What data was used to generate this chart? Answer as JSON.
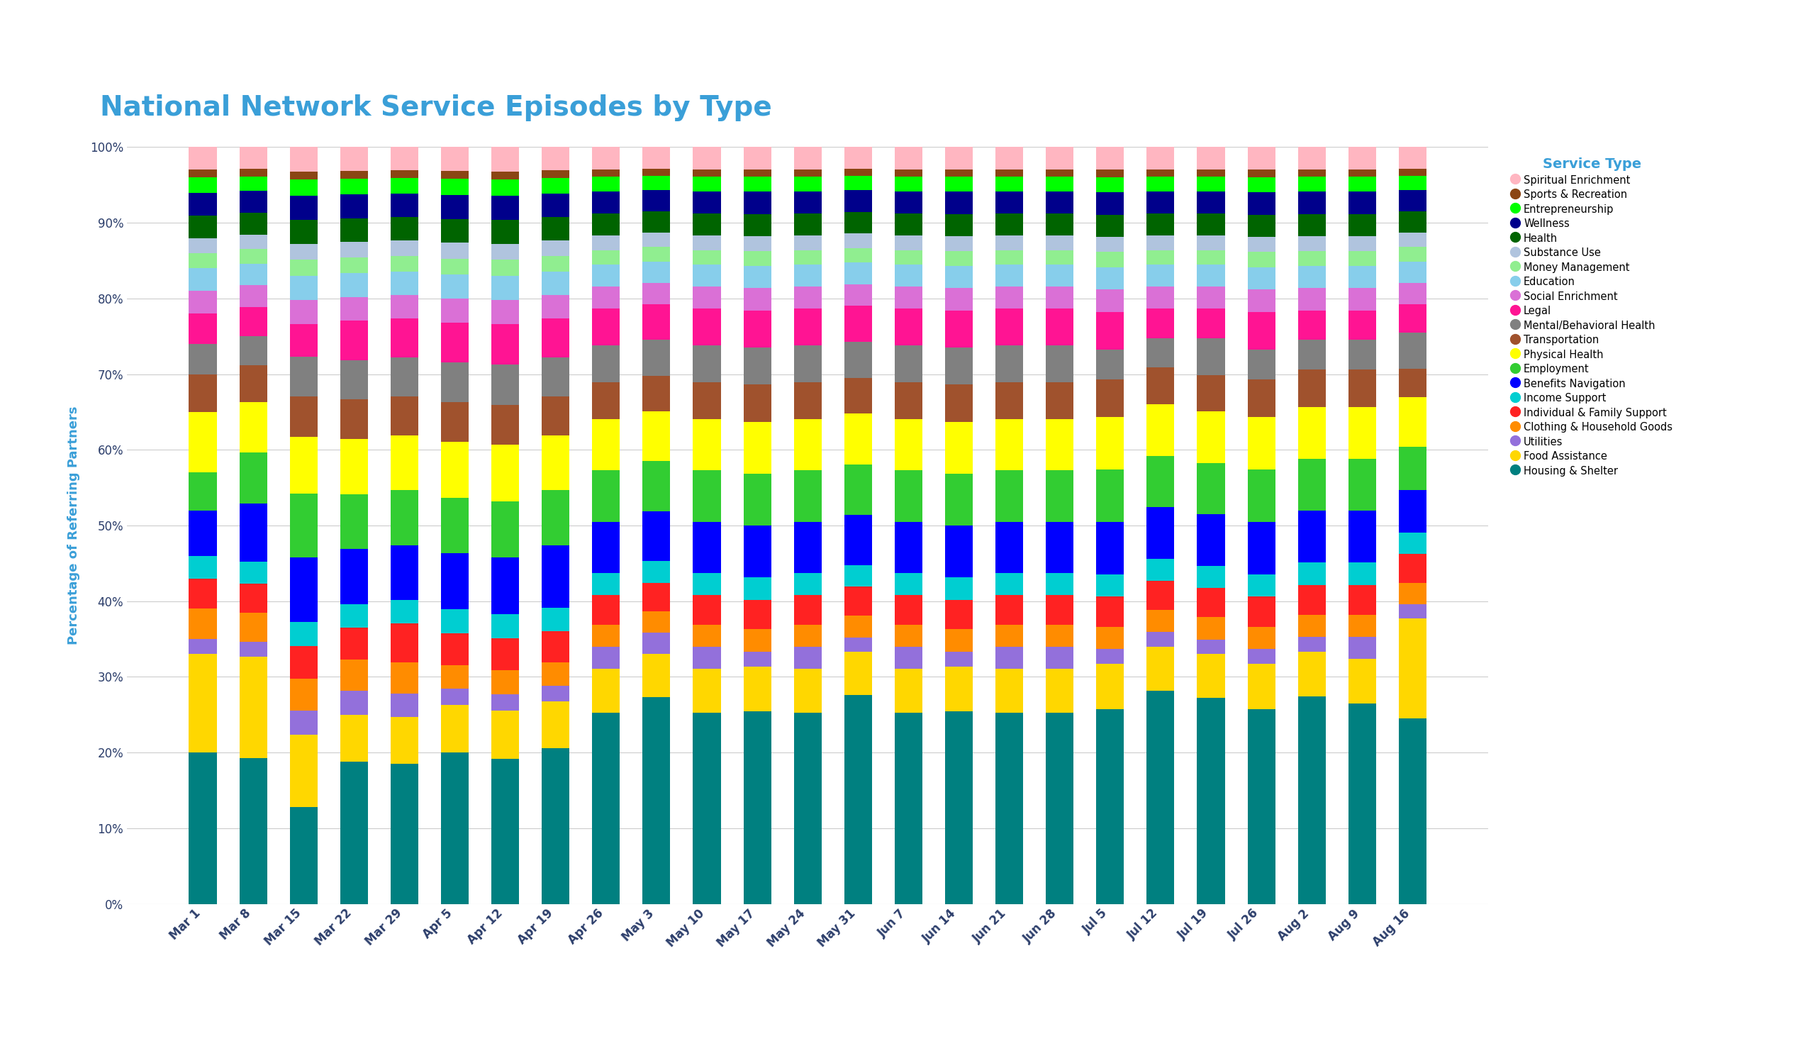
{
  "title": "National Network Service Episodes by Type",
  "title_color": "#3a9fd8",
  "ylabel": "Percentage of Referring Partners",
  "ylabel_color": "#3a9fd8",
  "background_color": "#ffffff",
  "categories": [
    "Mar 1",
    "Mar 8",
    "Mar 15",
    "Mar 22",
    "Mar 29",
    "Apr 5",
    "Apr 12",
    "Apr 19",
    "Apr 26",
    "May 3",
    "May 10",
    "May 17",
    "May 24",
    "May 31",
    "Jun 7",
    "Jun 14",
    "Jun 21",
    "Jun 28",
    "Jul 5",
    "Jul 12",
    "Jul 19",
    "Jul 26",
    "Aug 2",
    "Aug 9",
    "Aug 16"
  ],
  "service_types": [
    "Housing & Shelter",
    "Food Assistance",
    "Utilities",
    "Clothing & Household Goods",
    "Individual & Family Support",
    "Income Support",
    "Benefits Navigation",
    "Employment",
    "Physical Health",
    "Transportation",
    "Mental/Behavioral Health",
    "Legal",
    "Social Enrichment",
    "Education",
    "Money Management",
    "Substance Use",
    "Health",
    "Wellness",
    "Entrepreneurship",
    "Sports & Recreation",
    "Spiritual Enrichment"
  ],
  "colors": [
    "#008080",
    "#FFD700",
    "#9370DB",
    "#FF8C00",
    "#FF2222",
    "#00CED1",
    "#0000FF",
    "#32CD32",
    "#FFFF00",
    "#A0522D",
    "#808080",
    "#FF1493",
    "#DA70D6",
    "#87CEEB",
    "#90EE90",
    "#B0C4DE",
    "#006400",
    "#00008B",
    "#00FF00",
    "#8B4513",
    "#FFB6C1"
  ],
  "data": {
    "Housing & Shelter": [
      20,
      20,
      12,
      18,
      18,
      19,
      18,
      20,
      26,
      29,
      26,
      26,
      26,
      29,
      26,
      26,
      26,
      26,
      26,
      29,
      28,
      26,
      28,
      27,
      26
    ],
    "Food Assistance": [
      13,
      14,
      9,
      6,
      6,
      6,
      6,
      6,
      6,
      6,
      6,
      6,
      6,
      6,
      6,
      6,
      6,
      6,
      6,
      6,
      6,
      6,
      6,
      6,
      14
    ],
    "Utilities": [
      2,
      2,
      3,
      3,
      3,
      2,
      2,
      2,
      3,
      3,
      3,
      2,
      3,
      2,
      3,
      2,
      3,
      3,
      2,
      2,
      2,
      2,
      2,
      3,
      2
    ],
    "Clothing & Household Goods": [
      4,
      4,
      4,
      4,
      4,
      3,
      3,
      3,
      3,
      3,
      3,
      3,
      3,
      3,
      3,
      3,
      3,
      3,
      3,
      3,
      3,
      3,
      3,
      3,
      3
    ],
    "Individual & Family Support": [
      4,
      4,
      4,
      4,
      5,
      4,
      4,
      4,
      4,
      4,
      4,
      4,
      4,
      4,
      4,
      4,
      4,
      4,
      4,
      4,
      4,
      4,
      4,
      4,
      4
    ],
    "Income Support": [
      3,
      3,
      3,
      3,
      3,
      3,
      3,
      3,
      3,
      3,
      3,
      3,
      3,
      3,
      3,
      3,
      3,
      3,
      3,
      3,
      3,
      3,
      3,
      3,
      3
    ],
    "Benefits Navigation": [
      6,
      8,
      8,
      7,
      7,
      7,
      7,
      8,
      7,
      7,
      7,
      7,
      7,
      7,
      7,
      7,
      7,
      7,
      7,
      7,
      7,
      7,
      7,
      7,
      6
    ],
    "Employment": [
      5,
      7,
      8,
      7,
      7,
      7,
      7,
      7,
      7,
      7,
      7,
      7,
      7,
      7,
      7,
      7,
      7,
      7,
      7,
      7,
      7,
      7,
      7,
      7,
      6
    ],
    "Physical Health": [
      8,
      7,
      7,
      7,
      7,
      7,
      7,
      7,
      7,
      7,
      7,
      7,
      7,
      7,
      7,
      7,
      7,
      7,
      7,
      7,
      7,
      7,
      7,
      7,
      7
    ],
    "Transportation": [
      5,
      5,
      5,
      5,
      5,
      5,
      5,
      5,
      5,
      5,
      5,
      5,
      5,
      5,
      5,
      5,
      5,
      5,
      5,
      5,
      5,
      5,
      5,
      5,
      4
    ],
    "Mental/Behavioral Health": [
      4,
      4,
      5,
      5,
      5,
      5,
      5,
      5,
      5,
      5,
      5,
      5,
      5,
      5,
      5,
      5,
      5,
      5,
      4,
      4,
      5,
      4,
      4,
      4,
      5
    ],
    "Legal": [
      4,
      4,
      4,
      5,
      5,
      5,
      5,
      5,
      5,
      5,
      5,
      5,
      5,
      5,
      5,
      5,
      5,
      5,
      5,
      4,
      4,
      5,
      4,
      4,
      4
    ],
    "Social Enrichment": [
      3,
      3,
      3,
      3,
      3,
      3,
      3,
      3,
      3,
      3,
      3,
      3,
      3,
      3,
      3,
      3,
      3,
      3,
      3,
      3,
      3,
      3,
      3,
      3,
      3
    ],
    "Education": [
      3,
      3,
      3,
      3,
      3,
      3,
      3,
      3,
      3,
      3,
      3,
      3,
      3,
      3,
      3,
      3,
      3,
      3,
      3,
      3,
      3,
      3,
      3,
      3,
      3
    ],
    "Money Management": [
      2,
      2,
      2,
      2,
      2,
      2,
      2,
      2,
      2,
      2,
      2,
      2,
      2,
      2,
      2,
      2,
      2,
      2,
      2,
      2,
      2,
      2,
      2,
      2,
      2
    ],
    "Substance Use": [
      2,
      2,
      2,
      2,
      2,
      2,
      2,
      2,
      2,
      2,
      2,
      2,
      2,
      2,
      2,
      2,
      2,
      2,
      2,
      2,
      2,
      2,
      2,
      2,
      2
    ],
    "Health": [
      3,
      3,
      3,
      3,
      3,
      3,
      3,
      3,
      3,
      3,
      3,
      3,
      3,
      3,
      3,
      3,
      3,
      3,
      3,
      3,
      3,
      3,
      3,
      3,
      3
    ],
    "Wellness": [
      3,
      3,
      3,
      3,
      3,
      3,
      3,
      3,
      3,
      3,
      3,
      3,
      3,
      3,
      3,
      3,
      3,
      3,
      3,
      3,
      3,
      3,
      3,
      3,
      3
    ],
    "Entrepreneurship": [
      2,
      2,
      2,
      2,
      2,
      2,
      2,
      2,
      2,
      2,
      2,
      2,
      2,
      2,
      2,
      2,
      2,
      2,
      2,
      2,
      2,
      2,
      2,
      2,
      2
    ],
    "Sports & Recreation": [
      1,
      1,
      1,
      1,
      1,
      1,
      1,
      1,
      1,
      1,
      1,
      1,
      1,
      1,
      1,
      1,
      1,
      1,
      1,
      1,
      1,
      1,
      1,
      1,
      1
    ],
    "Spiritual Enrichment": [
      3,
      3,
      3,
      3,
      3,
      3,
      3,
      3,
      3,
      3,
      3,
      3,
      3,
      3,
      3,
      3,
      3,
      3,
      3,
      3,
      3,
      3,
      3,
      3,
      3
    ]
  },
  "legend_title": "Service Type",
  "legend_title_color": "#3a9fd8",
  "tick_label_color": "#2c3e6b",
  "grid_color": "#cccccc",
  "bar_width": 0.55
}
